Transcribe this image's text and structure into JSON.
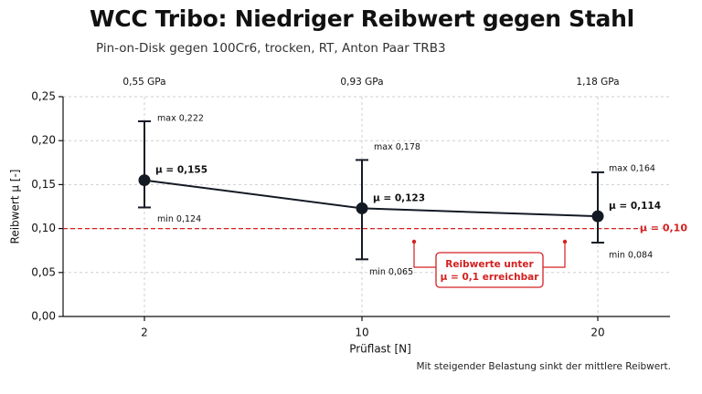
{
  "title": "WCC Tribo: Niedriger Reibwert gegen Stahl",
  "subtitle": "Pin-on-Disk gegen 100Cr6, trocken, RT, Anton Paar TRB3",
  "footnote": "Mit steigender Belastung sinkt der mittlere Reibwert.",
  "chart_data": {
    "type": "line",
    "xlabel": "Prüflast [N]",
    "ylabel": "Reibwert µ [-]",
    "ylim": [
      0,
      0.25
    ],
    "yticks": [
      "0,00",
      "0,05",
      "0,10",
      "0,15",
      "0,20",
      "0,25"
    ],
    "categories": [
      "2",
      "10",
      "20"
    ],
    "pressure_labels": [
      "0,55 GPa",
      "0,93 GPa",
      "1,18 GPa"
    ],
    "series": [
      {
        "values": [
          0.155,
          0.123,
          0.114
        ],
        "max": [
          0.222,
          0.178,
          0.164
        ],
        "min": [
          0.124,
          0.065,
          0.084
        ],
        "mean_labels": [
          "µ = 0,155",
          "µ = 0,123",
          "µ = 0,114"
        ],
        "max_labels": [
          "max 0,222",
          "max 0,178",
          "max 0,164"
        ],
        "min_labels": [
          "min 0,124",
          "min 0,065",
          "min 0,084"
        ],
        "color": "#141a24"
      }
    ],
    "reference_line": {
      "value": 0.1,
      "label": "µ = 0,10",
      "color": "#d42020"
    },
    "annotation": {
      "lines": [
        "Reibwerte unter",
        "µ = 0,1 erreichbar"
      ],
      "color": "#d42020"
    },
    "grid": true
  }
}
